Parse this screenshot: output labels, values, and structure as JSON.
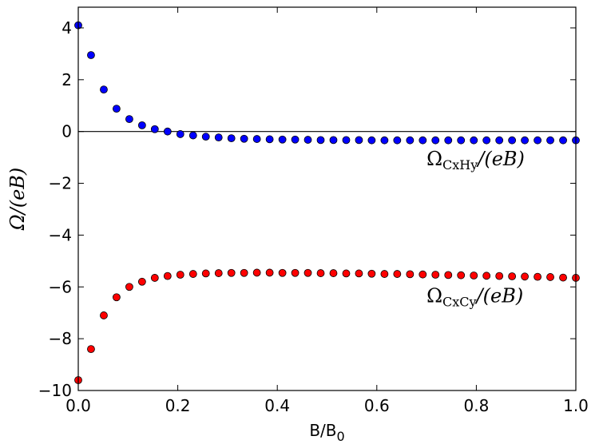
{
  "chart_data": {
    "type": "scatter",
    "title": "",
    "xlabel": "B/B",
    "xlabel_sub": "0",
    "ylabel": "Ω/(eB)",
    "xlim": [
      0.0,
      1.0
    ],
    "ylim": [
      -10,
      4.8
    ],
    "x_ticks": [
      "0.0",
      "0.2",
      "0.4",
      "0.6",
      "0.8",
      "1.0"
    ],
    "y_ticks": [
      "4",
      "2",
      "0",
      "−2",
      "−4",
      "−6",
      "−8",
      "−10"
    ],
    "zero_line": true,
    "grid": false,
    "series": [
      {
        "name": "Ω_CxHy/(eB)",
        "color": "#0000ff",
        "x": [
          0.0,
          0.0256,
          0.0513,
          0.0769,
          0.1026,
          0.1282,
          0.1538,
          0.1795,
          0.2051,
          0.2308,
          0.2564,
          0.2821,
          0.3077,
          0.3333,
          0.359,
          0.3846,
          0.4103,
          0.4359,
          0.4615,
          0.4872,
          0.5128,
          0.5385,
          0.5641,
          0.5897,
          0.6154,
          0.641,
          0.6667,
          0.6923,
          0.7179,
          0.7436,
          0.7692,
          0.7949,
          0.8205,
          0.8462,
          0.8718,
          0.8974,
          0.9231,
          0.9487,
          0.9744,
          1.0
        ],
        "y": [
          4.1,
          2.95,
          1.62,
          0.88,
          0.48,
          0.24,
          0.09,
          0.0,
          -0.1,
          -0.15,
          -0.2,
          -0.23,
          -0.26,
          -0.28,
          -0.29,
          -0.3,
          -0.31,
          -0.31,
          -0.32,
          -0.33,
          -0.33,
          -0.33,
          -0.33,
          -0.34,
          -0.34,
          -0.34,
          -0.34,
          -0.34,
          -0.34,
          -0.34,
          -0.34,
          -0.34,
          -0.34,
          -0.34,
          -0.34,
          -0.34,
          -0.34,
          -0.34,
          -0.34,
          -0.34
        ]
      },
      {
        "name": "Ω_CxCy/(eB)",
        "color": "#ff0000",
        "x": [
          0.0,
          0.0256,
          0.0513,
          0.0769,
          0.1026,
          0.1282,
          0.1538,
          0.1795,
          0.2051,
          0.2308,
          0.2564,
          0.2821,
          0.3077,
          0.3333,
          0.359,
          0.3846,
          0.4103,
          0.4359,
          0.4615,
          0.4872,
          0.5128,
          0.5385,
          0.5641,
          0.5897,
          0.6154,
          0.641,
          0.6667,
          0.6923,
          0.7179,
          0.7436,
          0.7692,
          0.7949,
          0.8205,
          0.8462,
          0.8718,
          0.8974,
          0.9231,
          0.9487,
          0.9744,
          1.0
        ],
        "y": [
          -9.6,
          -8.4,
          -7.1,
          -6.4,
          -6.0,
          -5.8,
          -5.65,
          -5.58,
          -5.53,
          -5.5,
          -5.48,
          -5.47,
          -5.46,
          -5.46,
          -5.45,
          -5.45,
          -5.46,
          -5.46,
          -5.46,
          -5.47,
          -5.47,
          -5.48,
          -5.48,
          -5.49,
          -5.5,
          -5.5,
          -5.51,
          -5.52,
          -5.53,
          -5.54,
          -5.55,
          -5.56,
          -5.57,
          -5.58,
          -5.59,
          -5.6,
          -5.61,
          -5.62,
          -5.64,
          -5.65
        ]
      }
    ],
    "annotations": [
      {
        "base": "Ω",
        "sub": "CxHy",
        "suffix": "/(eB)",
        "x": 0.7,
        "y": -1.3
      },
      {
        "base": "Ω",
        "sub": "CxCy",
        "suffix": "/(eB)",
        "x": 0.7,
        "y": -6.6
      }
    ]
  }
}
